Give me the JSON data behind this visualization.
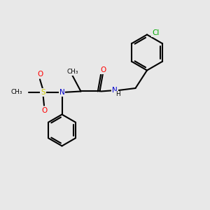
{
  "background_color": "#e8e8e8",
  "bond_color": "#000000",
  "bond_lw": 1.5,
  "atom_colors": {
    "N": "#0000cc",
    "O": "#ff0000",
    "S": "#cccc00",
    "Cl": "#00aa00",
    "C": "#000000",
    "H": "#000000"
  },
  "font_size": 7.5,
  "fig_size": [
    3.0,
    3.0
  ],
  "dpi": 100
}
